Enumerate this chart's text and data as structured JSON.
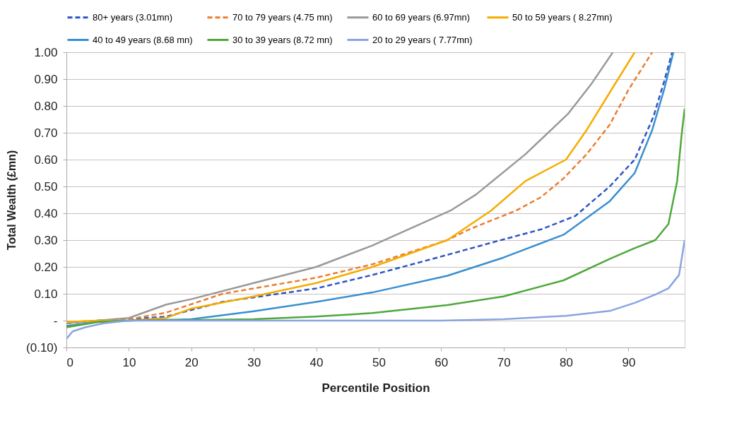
{
  "chart_data": {
    "type": "line",
    "xlabel": "Percentile Position",
    "ylabel": "Total Wealth (£mn)",
    "xlim": [
      0,
      99
    ],
    "xticks": [
      0,
      10,
      20,
      30,
      40,
      50,
      60,
      70,
      80,
      90
    ],
    "ylim": [
      -0.1,
      1.0
    ],
    "yticks": [
      {
        "value": -0.1,
        "label": "(0.10)"
      },
      {
        "value": 0,
        "label": "-"
      },
      {
        "value": 0.1,
        "label": "0.10"
      },
      {
        "value": 0.2,
        "label": "0.20"
      },
      {
        "value": 0.3,
        "label": "0.30"
      },
      {
        "value": 0.4,
        "label": "0.40"
      },
      {
        "value": 0.5,
        "label": "0.50"
      },
      {
        "value": 0.6,
        "label": "0.60"
      },
      {
        "value": 0.7,
        "label": "0.70"
      },
      {
        "value": 0.8,
        "label": "0.80"
      },
      {
        "value": 0.9,
        "label": "0.90"
      },
      {
        "value": 1.0,
        "label": "1.00"
      }
    ],
    "grid": "y",
    "legend": "top",
    "series": [
      {
        "name": "80+ years (3.01mn)",
        "color": "#2f55c4",
        "line_style": "dashed",
        "x": [
          0,
          5,
          10,
          16,
          25,
          40,
          49,
          61,
          68,
          76,
          81.5,
          87,
          91,
          94,
          95.7,
          97
        ],
        "values": [
          -0.01,
          0,
          0.005,
          0.015,
          0.07,
          0.12,
          0.17,
          0.245,
          0.29,
          0.34,
          0.39,
          0.5,
          0.6,
          0.76,
          0.89,
          1.0
        ]
      },
      {
        "name": "70 to 79 years (4.75 mn)",
        "color": "#ed7d31",
        "line_style": "dashed",
        "x": [
          0,
          5,
          10,
          16,
          25,
          40,
          49,
          61,
          64.5,
          72,
          76,
          79.6,
          83.3,
          87,
          90,
          93.8
        ],
        "values": [
          -0.005,
          0,
          0.005,
          0.03,
          0.1,
          0.16,
          0.21,
          0.3,
          0.34,
          0.41,
          0.46,
          0.53,
          0.62,
          0.73,
          0.86,
          1.0
        ]
      },
      {
        "name": "60 to 69 years (6.97mn)",
        "color": "#999999",
        "line_style": "solid",
        "x": [
          0,
          5,
          10,
          16,
          20,
          30,
          40,
          49,
          61.5,
          65.6,
          73.5,
          80.3,
          84,
          87.5
        ],
        "values": [
          -0.01,
          0,
          0.01,
          0.06,
          0.08,
          0.14,
          0.2,
          0.28,
          0.41,
          0.47,
          0.62,
          0.77,
          0.88,
          1.0
        ]
      },
      {
        "name": "50 to 59 years ( 8.27mn)",
        "color": "#f5ac00",
        "line_style": "solid",
        "x": [
          0,
          5,
          10,
          16,
          20,
          30,
          40,
          49,
          61,
          68,
          73.5,
          80,
          83.3,
          87,
          91
        ],
        "values": [
          -0.005,
          0,
          0,
          0.01,
          0.045,
          0.09,
          0.14,
          0.2,
          0.3,
          0.41,
          0.52,
          0.6,
          0.71,
          0.85,
          1.0
        ]
      },
      {
        "name": "40 to 49 years (8.68 mn)",
        "color": "#3a8fd0",
        "line_style": "solid",
        "x": [
          0,
          5,
          10,
          20,
          30,
          40,
          49,
          61,
          70,
          79.6,
          87,
          91,
          93.8,
          95.7,
          97.2
        ],
        "values": [
          -0.02,
          -0.005,
          0,
          0.005,
          0.035,
          0.07,
          0.105,
          0.167,
          0.235,
          0.32,
          0.445,
          0.55,
          0.71,
          0.86,
          1.0
        ]
      },
      {
        "name": "30 to 39 years (8.72 mn)",
        "color": "#4ea83a",
        "line_style": "solid",
        "x": [
          0,
          5,
          10,
          20,
          30,
          40,
          49,
          61,
          70,
          79.6,
          87,
          91,
          94.3,
          96.4,
          97.8,
          98.5,
          99
        ],
        "values": [
          -0.025,
          -0.005,
          0,
          0.002,
          0.005,
          0.015,
          0.028,
          0.058,
          0.09,
          0.15,
          0.23,
          0.27,
          0.3,
          0.36,
          0.52,
          0.69,
          0.79
        ]
      },
      {
        "name": "20 to 29 years ( 7.77mn)",
        "color": "#8aa4e0",
        "line_style": "solid",
        "x": [
          0,
          1,
          3,
          6,
          10,
          20,
          40,
          60,
          70,
          80,
          87,
          91,
          94.3,
          96.4,
          98.1,
          99
        ],
        "values": [
          -0.068,
          -0.04,
          -0.025,
          -0.01,
          0,
          0,
          0,
          0,
          0.005,
          0.018,
          0.036,
          0.066,
          0.097,
          0.12,
          0.17,
          0.3
        ]
      }
    ]
  }
}
